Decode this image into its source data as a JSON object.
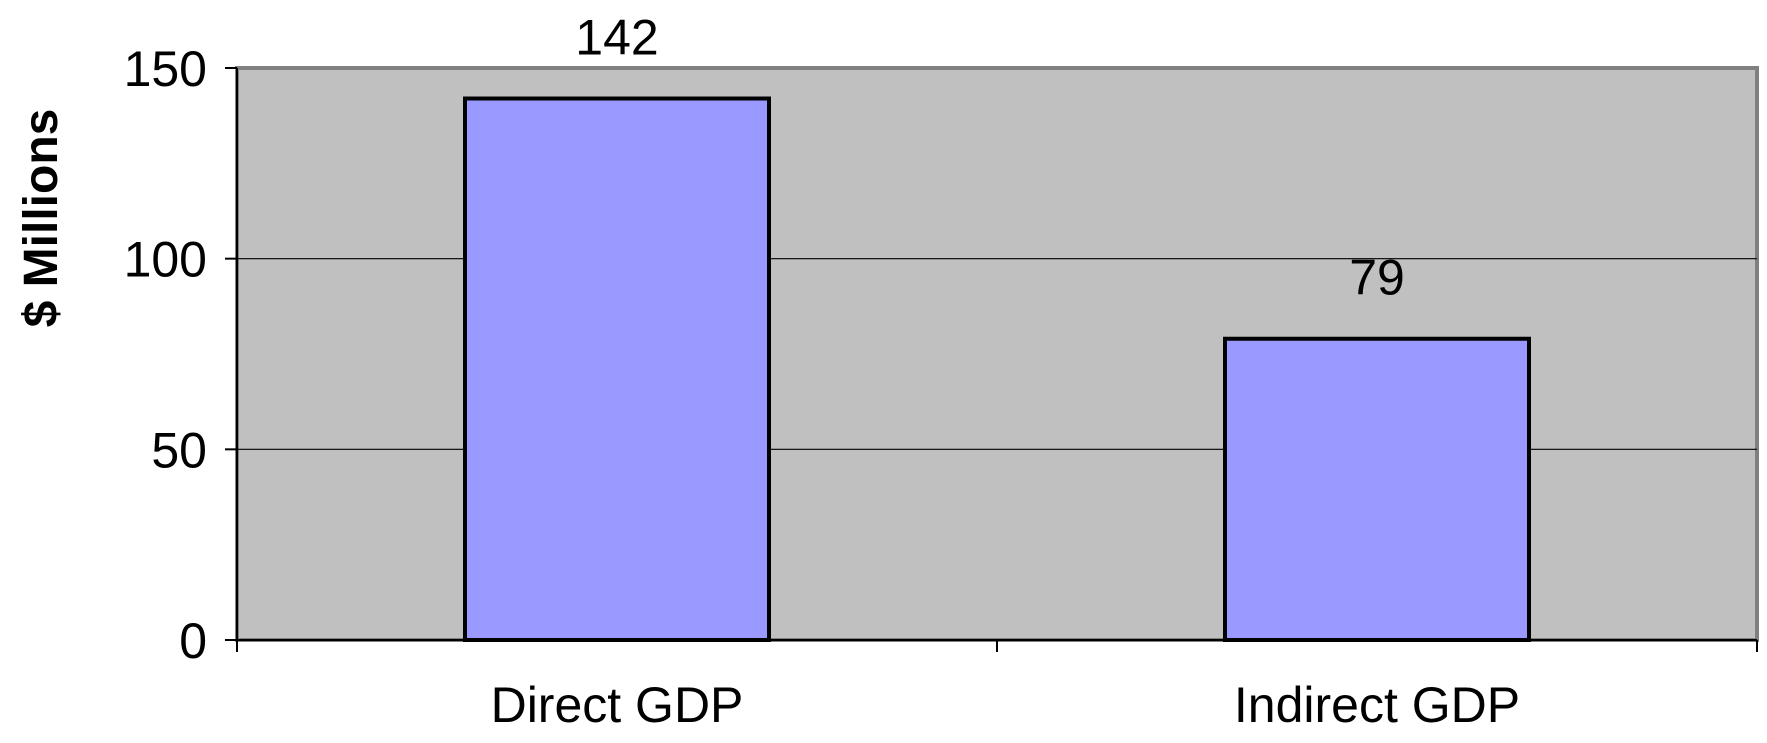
{
  "chart_data": {
    "type": "bar",
    "title": "",
    "xlabel": "",
    "ylabel": "$ Millions",
    "categories": [
      "Direct GDP",
      "Indirect GDP"
    ],
    "values": [
      142,
      79
    ],
    "data_labels": [
      "142",
      "79"
    ],
    "ylim": [
      0,
      150
    ],
    "yticks": [
      0,
      50,
      100,
      150
    ],
    "ytick_labels": [
      "0",
      "50",
      "100",
      "150"
    ],
    "grid": true,
    "legend": "none",
    "colors": {
      "bar_fill": "#9999ff",
      "bar_stroke": "#000000",
      "plot_bg": "#c0c0c0",
      "gridline": "#000000",
      "plot_border": "#808080"
    }
  }
}
